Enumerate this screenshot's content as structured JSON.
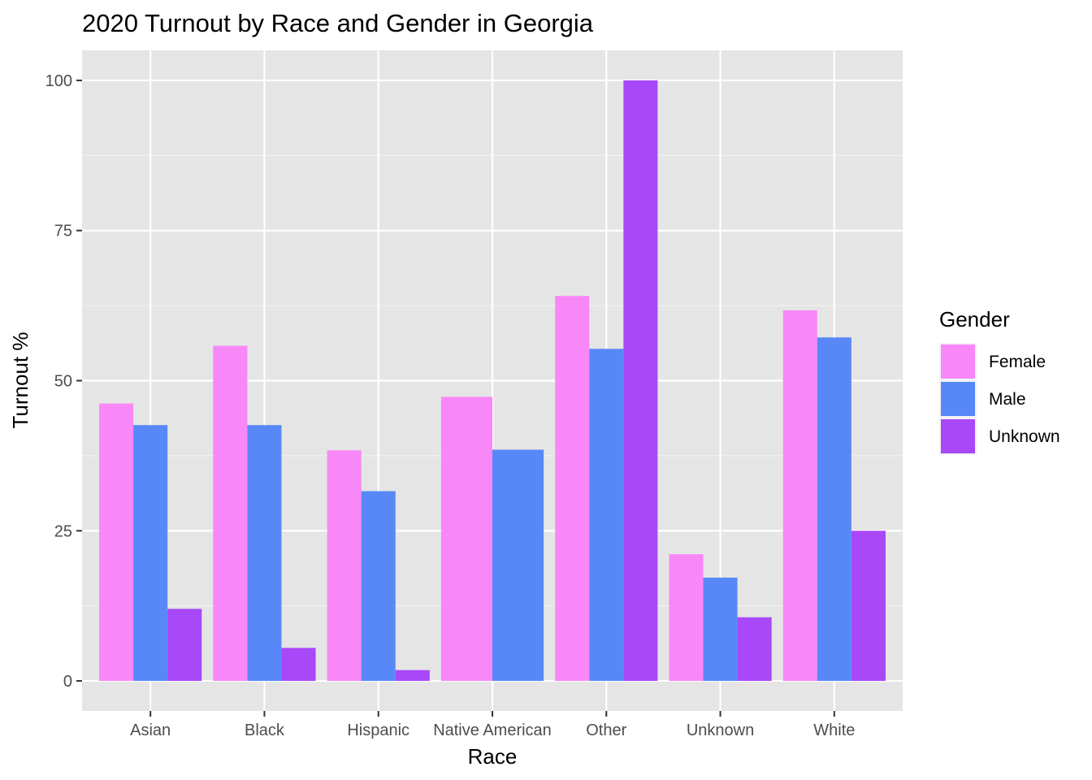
{
  "chart_data": {
    "type": "bar",
    "title": "2020 Turnout by Race and Gender in Georgia",
    "xlabel": "Race",
    "ylabel": "Turnout %",
    "categories": [
      "Asian",
      "Black",
      "Hispanic",
      "Native American",
      "Other",
      "Unknown",
      "White"
    ],
    "series": [
      {
        "name": "Female",
        "color": "#F888F8",
        "values": [
          46.2,
          55.8,
          38.4,
          47.3,
          64.1,
          21.1,
          61.7
        ]
      },
      {
        "name": "Male",
        "color": "#5888F8",
        "values": [
          42.6,
          42.6,
          31.6,
          38.5,
          55.3,
          17.2,
          57.2
        ]
      },
      {
        "name": "Unknown",
        "color": "#A848F8",
        "values": [
          12.0,
          5.5,
          1.8,
          null,
          100.0,
          10.6,
          25.0
        ]
      }
    ],
    "ylim": [
      -5,
      105
    ],
    "yticks": [
      0,
      25,
      50,
      75,
      100
    ],
    "grid": true,
    "legend": {
      "title": "Gender",
      "position": "right"
    }
  }
}
